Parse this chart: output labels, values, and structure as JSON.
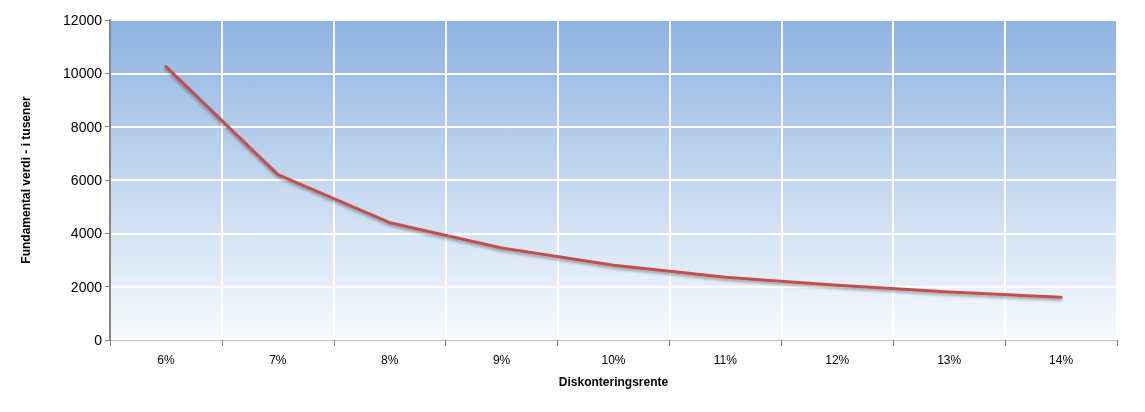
{
  "chart_data": {
    "type": "line",
    "xlabel": "Diskonteringsrente",
    "ylabel": "Fundamental verdi - i tusener",
    "categories": [
      "6%",
      "7%",
      "8%",
      "9%",
      "10%",
      "11%",
      "12%",
      "13%",
      "14%"
    ],
    "series": [
      {
        "color": "#c0504d",
        "values": [
          10250,
          6200,
          4400,
          3450,
          2800,
          2350,
          2050,
          1800,
          1600
        ]
      }
    ],
    "ylim": [
      0,
      12000
    ],
    "yticks": [
      0,
      2000,
      4000,
      6000,
      8000,
      10000,
      12000
    ],
    "grid": true,
    "marker": "none",
    "line_style": "solid"
  }
}
